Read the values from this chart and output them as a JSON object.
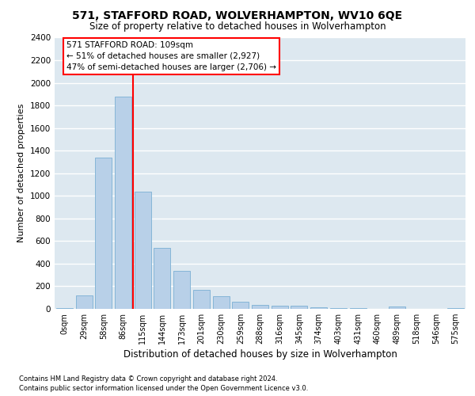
{
  "title": "571, STAFFORD ROAD, WOLVERHAMPTON, WV10 6QE",
  "subtitle": "Size of property relative to detached houses in Wolverhampton",
  "xlabel": "Distribution of detached houses by size in Wolverhampton",
  "ylabel": "Number of detached properties",
  "bar_color": "#b8d0e8",
  "bar_edge_color": "#7aafd4",
  "background_color": "#dde8f0",
  "grid_color": "white",
  "categories": [
    "0sqm",
    "29sqm",
    "58sqm",
    "86sqm",
    "115sqm",
    "144sqm",
    "173sqm",
    "201sqm",
    "230sqm",
    "259sqm",
    "288sqm",
    "316sqm",
    "345sqm",
    "374sqm",
    "403sqm",
    "431sqm",
    "460sqm",
    "489sqm",
    "518sqm",
    "546sqm",
    "575sqm"
  ],
  "values": [
    10,
    120,
    1340,
    1880,
    1040,
    540,
    335,
    165,
    110,
    60,
    38,
    28,
    25,
    15,
    5,
    5,
    0,
    20,
    0,
    0,
    10
  ],
  "ylim": [
    0,
    2400
  ],
  "yticks": [
    0,
    200,
    400,
    600,
    800,
    1000,
    1200,
    1400,
    1600,
    1800,
    2000,
    2200,
    2400
  ],
  "vline_x": 3.5,
  "vline_color": "red",
  "annotation_title": "571 STAFFORD ROAD: 109sqm",
  "annotation_line2": "← 51% of detached houses are smaller (2,927)",
  "annotation_line3": "47% of semi-detached houses are larger (2,706) →",
  "annotation_box_color": "white",
  "annotation_box_edge_color": "red",
  "footer_line1": "Contains HM Land Registry data © Crown copyright and database right 2024.",
  "footer_line2": "Contains public sector information licensed under the Open Government Licence v3.0."
}
